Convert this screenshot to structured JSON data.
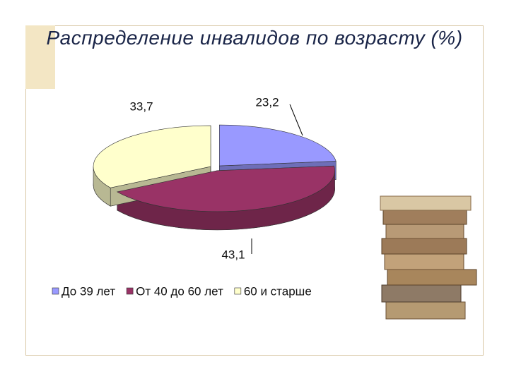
{
  "chart_data": {
    "type": "pie",
    "title": "Распределение инвалидов по возрасту (%)",
    "categories": [
      "До 39 лет",
      "От 40 до 60 лет",
      "60 и старше"
    ],
    "values": [
      23.2,
      43.1,
      33.7
    ],
    "value_labels": [
      "23,2",
      "43,1",
      "33,7"
    ],
    "colors": [
      "#9999ff",
      "#993366",
      "#ffffcc"
    ],
    "legend": "bottom"
  }
}
